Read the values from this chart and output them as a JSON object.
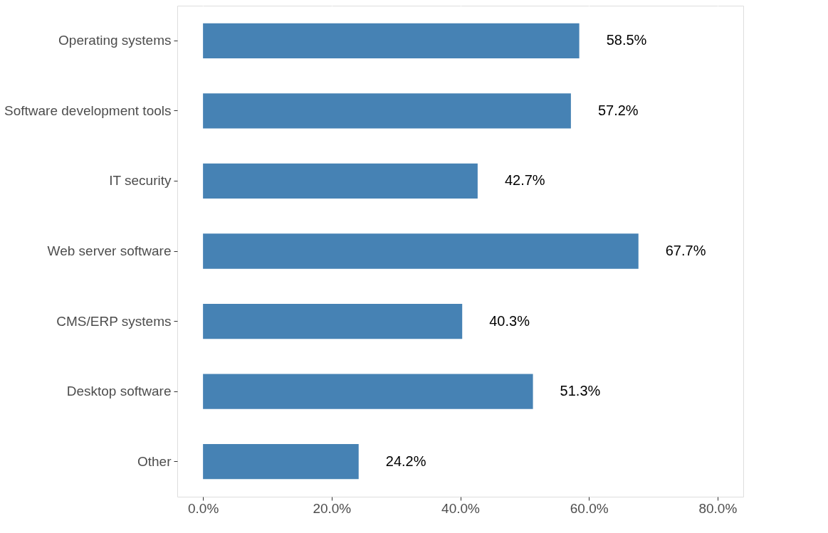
{
  "chart_data": {
    "type": "bar",
    "orientation": "horizontal",
    "categories": [
      "Operating systems",
      "Software development tools",
      "IT security",
      "Web server software",
      "CMS/ERP systems",
      "Desktop software",
      "Other"
    ],
    "values": [
      58.5,
      57.2,
      42.7,
      67.7,
      40.3,
      51.3,
      24.2
    ],
    "value_labels": [
      "58.5%",
      "57.2%",
      "42.7%",
      "67.7%",
      "40.3%",
      "51.3%",
      "24.2%"
    ],
    "color": "#4682b4",
    "xlim": [
      -4,
      84
    ],
    "xticks": [
      {
        "value": 0,
        "label": "0.0%"
      },
      {
        "value": 20,
        "label": "20.0%"
      },
      {
        "value": 40,
        "label": "40.0%"
      },
      {
        "value": 60,
        "label": "60.0%"
      },
      {
        "value": 80,
        "label": "80.0%"
      }
    ],
    "grid": "x"
  }
}
